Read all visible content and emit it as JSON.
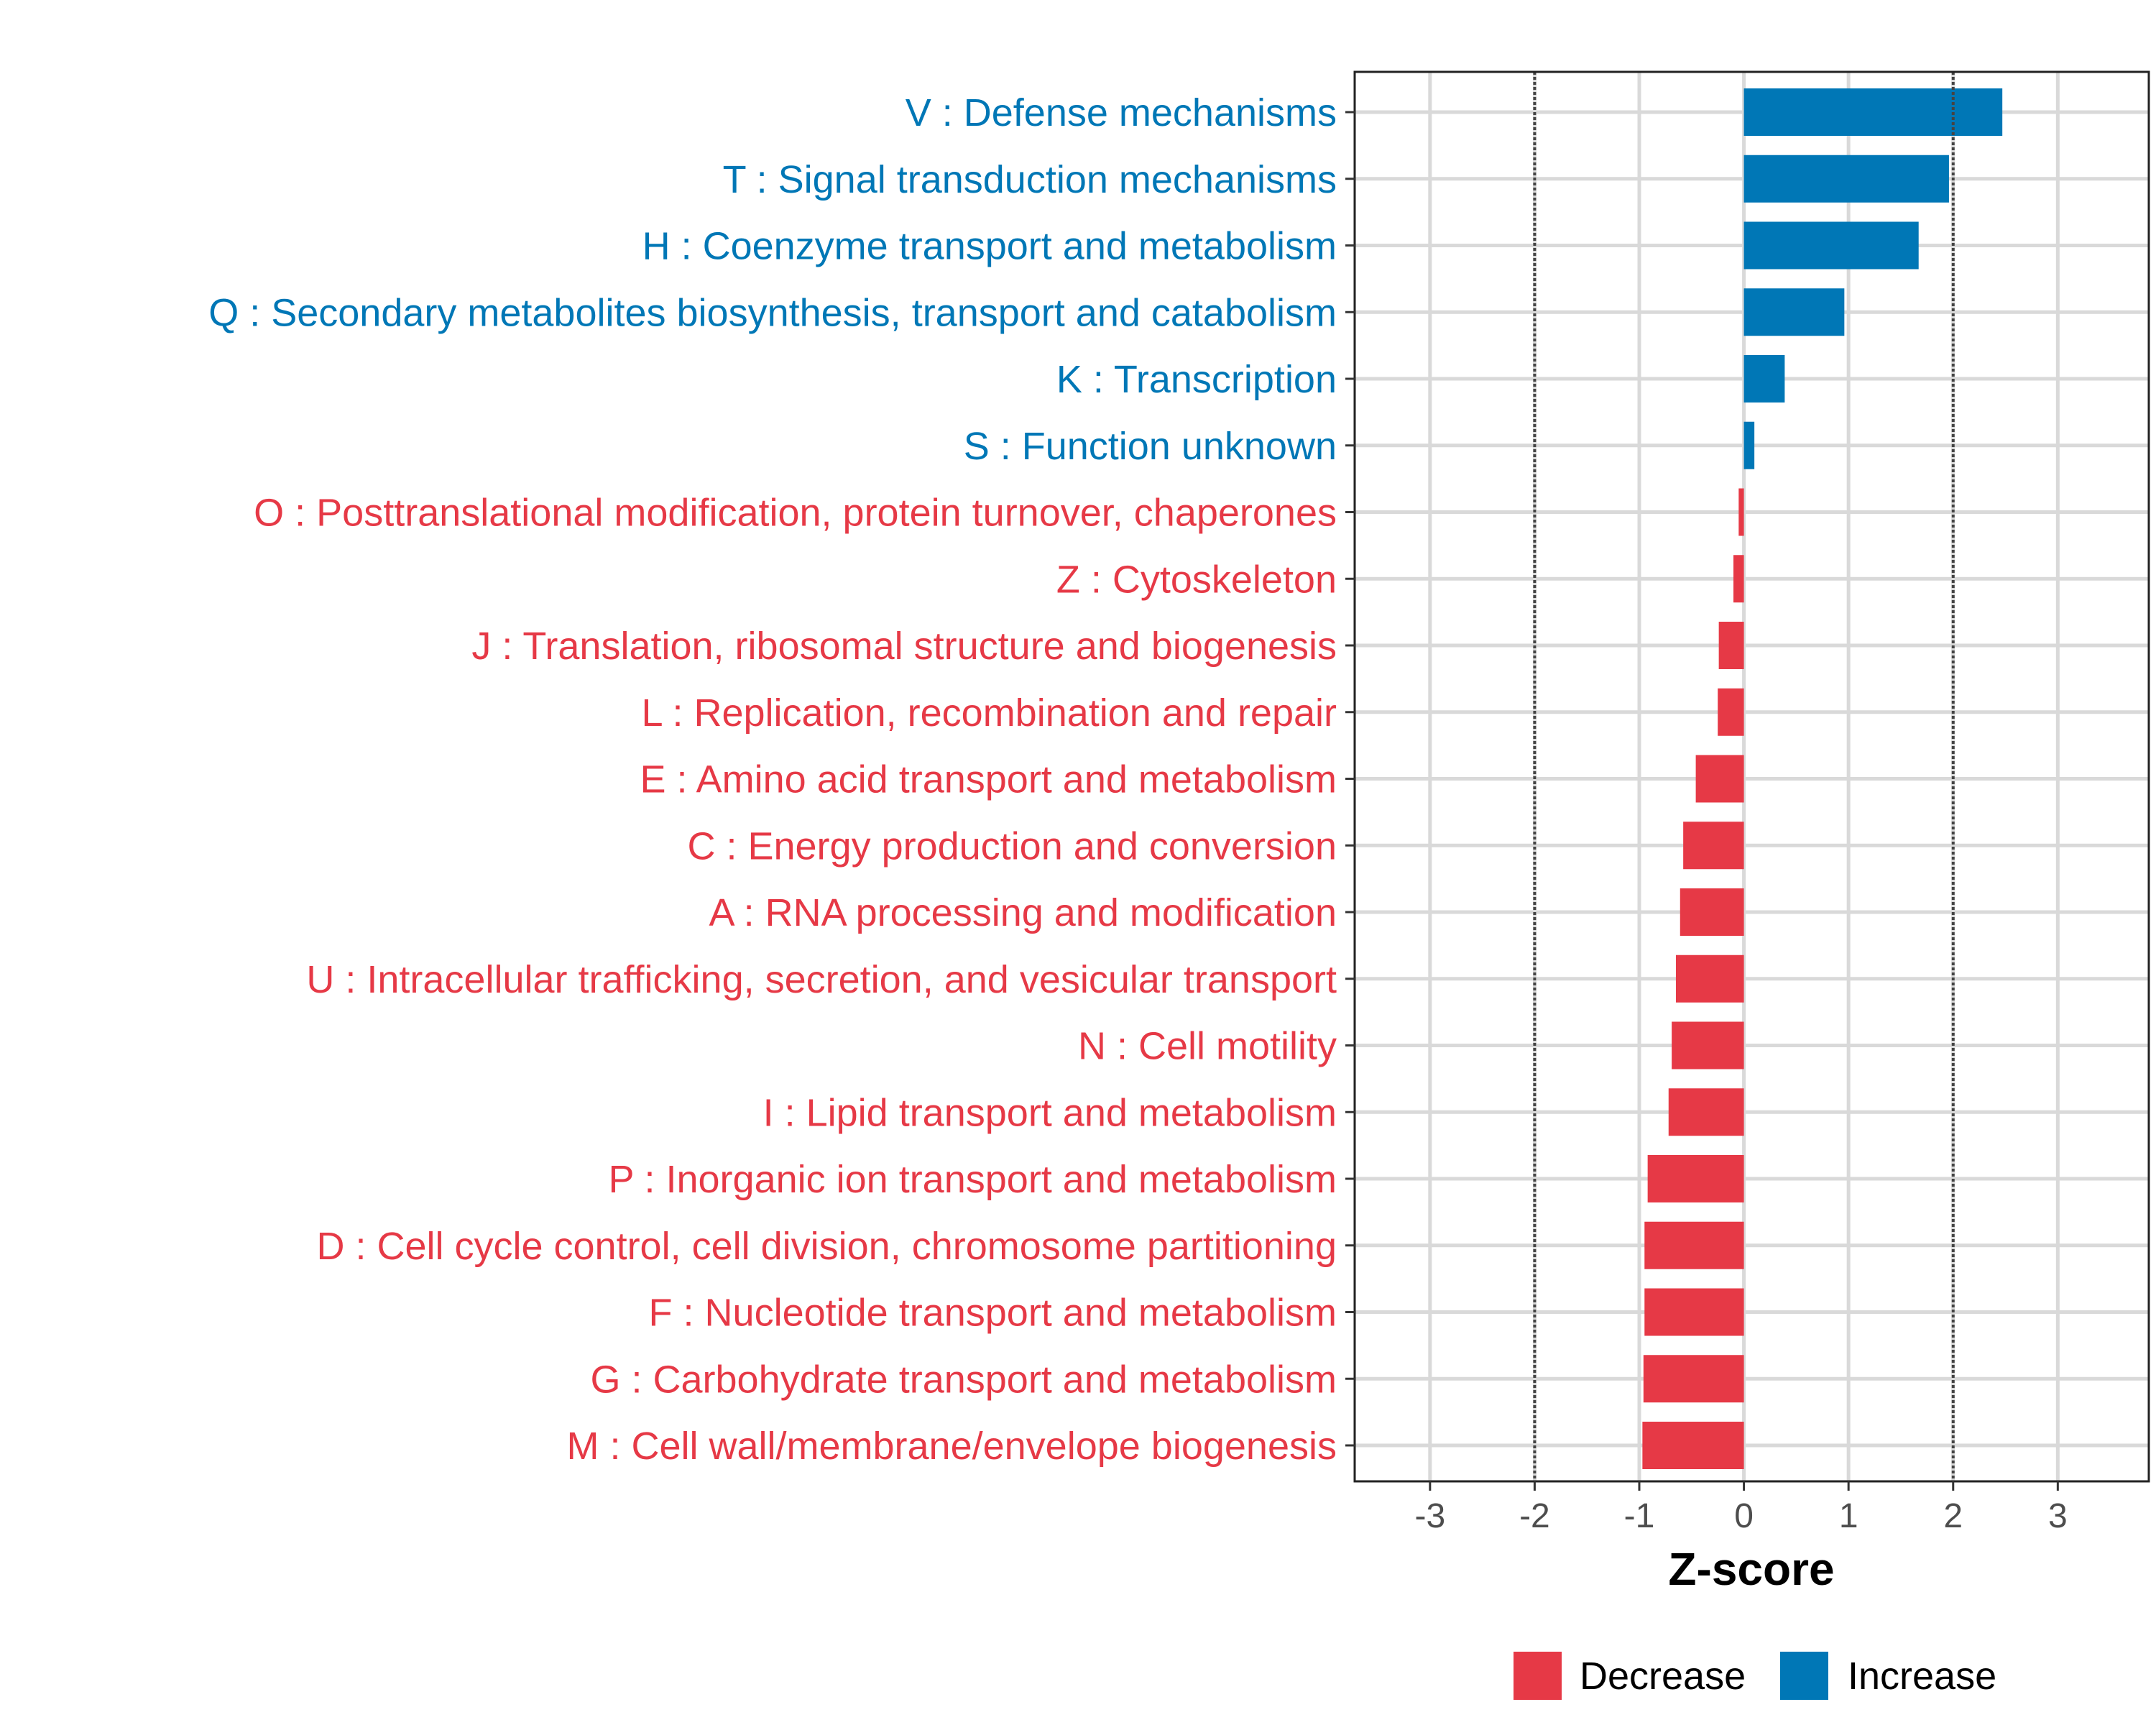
{
  "chart_data": {
    "type": "bar",
    "orientation": "horizontal",
    "title": "",
    "xlabel": "Z-score",
    "ylabel": "",
    "xlim": [
      -3.72,
      3.87
    ],
    "xticks": [
      -3,
      -2,
      -1,
      0,
      1,
      2,
      3
    ],
    "xtick_labels": [
      "-3",
      "-2",
      "-1",
      "0",
      "1",
      "2",
      "3"
    ],
    "reference_lines": [
      -2,
      2
    ],
    "grid": true,
    "legend_position": "bottom",
    "legend": [
      {
        "label": "Decrease",
        "color": "#E63946"
      },
      {
        "label": "Increase",
        "color": "#0077B6"
      }
    ],
    "categories": [
      "V : Defense mechanisms",
      "T : Signal transduction mechanisms",
      "H : Coenzyme transport and metabolism",
      "Q : Secondary metabolites biosynthesis, transport and catabolism",
      "K : Transcription",
      "S : Function unknown",
      "O : Posttranslational modification, protein turnover, chaperones",
      "Z : Cytoskeleton",
      "J : Translation, ribosomal structure and biogenesis",
      "L : Replication, recombination and repair",
      "E : Amino acid transport and metabolism",
      "C : Energy production and conversion",
      "A : RNA processing and modification",
      "U : Intracellular trafficking, secretion, and vesicular transport",
      "N : Cell motility",
      "I : Lipid transport and metabolism",
      "P : Inorganic ion transport and metabolism",
      "D : Cell cycle control, cell division, chromosome partitioning",
      "F : Nucleotide transport and metabolism",
      "G : Carbohydrate transport and metabolism",
      "M : Cell wall/membrane/envelope biogenesis"
    ],
    "values": [
      2.47,
      1.96,
      1.67,
      0.96,
      0.39,
      0.1,
      -0.05,
      -0.1,
      -0.24,
      -0.25,
      -0.46,
      -0.58,
      -0.61,
      -0.65,
      -0.69,
      -0.72,
      -0.92,
      -0.95,
      -0.95,
      -0.96,
      -0.97
    ]
  }
}
